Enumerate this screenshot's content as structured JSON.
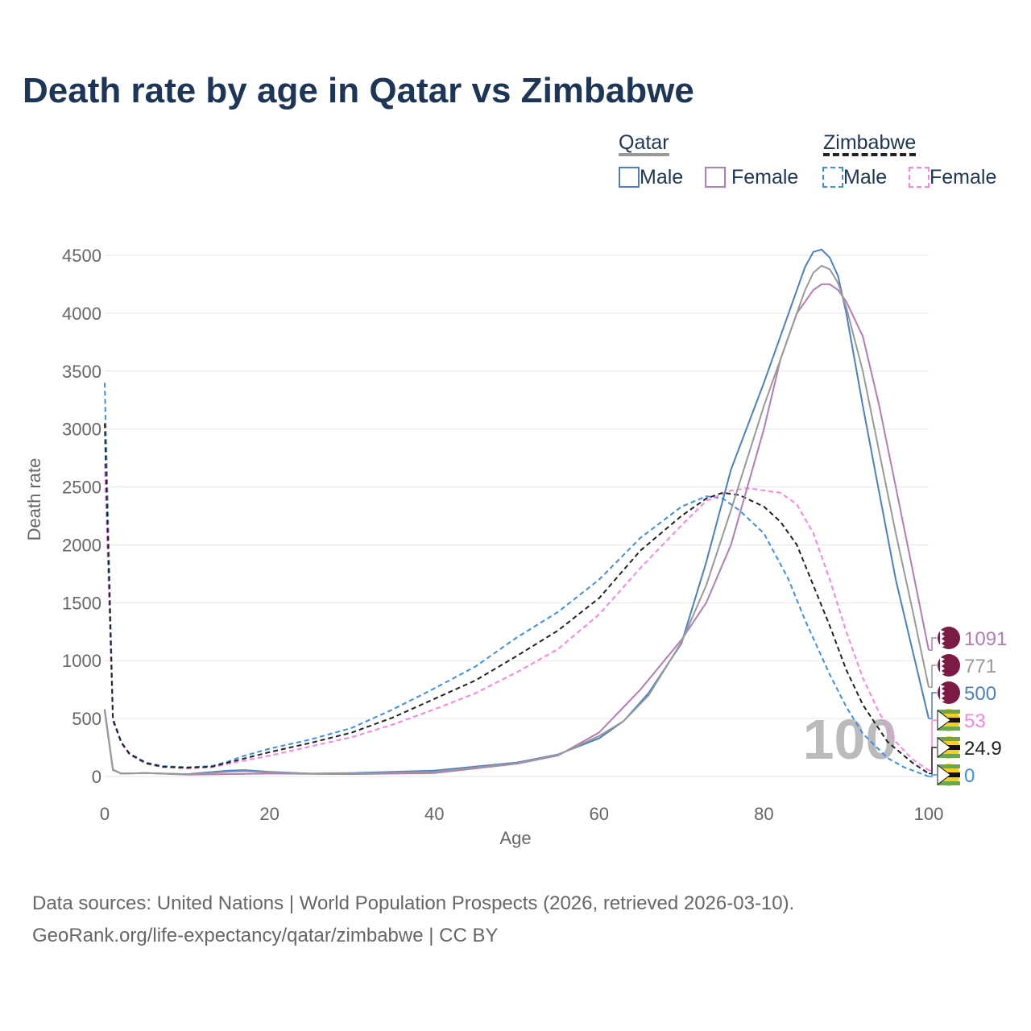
{
  "title": "Death rate by age in Qatar vs Zimbabwe",
  "legend": {
    "group1": "Qatar",
    "group2": "Zimbabwe",
    "male": "Male",
    "female": "Female"
  },
  "footer": {
    "line1": "Data sources: United Nations | World Population Prospects (2026, retrieved 2026-03-10).",
    "line2": "GeoRank.org/life-expectancy/qatar/zimbabwe | CC BY"
  },
  "watermark": "100",
  "chart_data": {
    "type": "line",
    "xlabel": "Age",
    "ylabel": "Death rate",
    "xlim": [
      0,
      100
    ],
    "ylim": [
      0,
      4500
    ],
    "xticks": [
      0,
      20,
      40,
      60,
      80,
      100
    ],
    "yticks": [
      0,
      500,
      1000,
      1500,
      2000,
      2500,
      3000,
      3500,
      4000,
      4500
    ],
    "series": [
      {
        "name": "Zimbabwe Male",
        "color": "#3b8ef0",
        "dashed": true,
        "end_label": "0",
        "x": [
          0,
          1,
          2,
          3,
          5,
          7,
          10,
          13,
          15,
          17,
          20,
          25,
          30,
          35,
          40,
          45,
          50,
          55,
          60,
          65,
          70,
          73,
          75,
          77,
          80,
          83,
          85,
          88,
          90,
          92,
          95,
          97,
          100
        ],
        "y": [
          3400,
          500,
          300,
          200,
          120,
          90,
          80,
          90,
          130,
          180,
          240,
          320,
          420,
          580,
          760,
          950,
          1200,
          1420,
          1700,
          2060,
          2330,
          2420,
          2400,
          2300,
          2100,
          1700,
          1350,
          880,
          600,
          370,
          160,
          80,
          0
        ]
      },
      {
        "name": "Zimbabwe Female",
        "color": "#ff80e8",
        "dashed": true,
        "end_label": "53",
        "x": [
          0,
          1,
          2,
          3,
          5,
          7,
          10,
          13,
          15,
          20,
          25,
          30,
          35,
          40,
          45,
          50,
          55,
          60,
          65,
          70,
          73,
          76,
          78,
          80,
          82,
          84,
          86,
          88,
          90,
          92,
          94,
          96,
          98,
          100
        ],
        "y": [
          2700,
          480,
          290,
          190,
          110,
          80,
          70,
          80,
          110,
          180,
          260,
          340,
          450,
          580,
          720,
          900,
          1100,
          1400,
          1800,
          2170,
          2380,
          2470,
          2490,
          2470,
          2450,
          2350,
          2100,
          1700,
          1250,
          850,
          550,
          300,
          150,
          53
        ]
      },
      {
        "name": "Zimbabwe",
        "color": "#222222",
        "dashed": true,
        "end_label": "24.9",
        "x": [
          0,
          1,
          2,
          3,
          5,
          7,
          10,
          13,
          15,
          20,
          25,
          30,
          35,
          40,
          45,
          50,
          55,
          60,
          65,
          70,
          73,
          75,
          77,
          80,
          82,
          84,
          86,
          88,
          90,
          92,
          95,
          98,
          100
        ],
        "y": [
          3050,
          490,
          295,
          195,
          115,
          85,
          75,
          85,
          120,
          210,
          290,
          380,
          510,
          670,
          830,
          1040,
          1260,
          1540,
          1950,
          2250,
          2400,
          2450,
          2430,
          2330,
          2200,
          2000,
          1650,
          1300,
          920,
          620,
          300,
          120,
          24.9
        ]
      },
      {
        "name": "Qatar Male",
        "color": "#4a7fc8",
        "dashed": false,
        "end_label": "500",
        "x": [
          0,
          1,
          2,
          5,
          10,
          15,
          17,
          20,
          25,
          30,
          40,
          50,
          55,
          60,
          63,
          66,
          70,
          73,
          76,
          80,
          83,
          85,
          86,
          87,
          88,
          89,
          90,
          92,
          94,
          96,
          98,
          100
        ],
        "y": [
          580,
          60,
          25,
          30,
          20,
          50,
          55,
          40,
          25,
          30,
          50,
          120,
          190,
          330,
          480,
          720,
          1150,
          1850,
          2650,
          3400,
          4000,
          4400,
          4530,
          4550,
          4480,
          4320,
          4000,
          3200,
          2450,
          1700,
          1100,
          500
        ]
      },
      {
        "name": "Qatar Female",
        "color": "#b57bb8",
        "dashed": false,
        "end_label": "1091",
        "x": [
          0,
          1,
          2,
          5,
          10,
          20,
          30,
          40,
          50,
          55,
          60,
          65,
          70,
          73,
          76,
          78,
          80,
          82,
          84,
          86,
          87,
          88,
          89,
          90,
          92,
          94,
          96,
          98,
          100
        ],
        "y": [
          560,
          55,
          25,
          30,
          15,
          25,
          20,
          30,
          110,
          180,
          380,
          750,
          1180,
          1500,
          2000,
          2500,
          3000,
          3600,
          4000,
          4200,
          4250,
          4250,
          4200,
          4100,
          3800,
          3200,
          2500,
          1800,
          1091
        ]
      },
      {
        "name": "Qatar",
        "color": "#999999",
        "dashed": false,
        "end_label": "771",
        "x": [
          0,
          1,
          2,
          5,
          10,
          15,
          17,
          20,
          25,
          30,
          40,
          50,
          55,
          60,
          63,
          66,
          70,
          73,
          76,
          80,
          83,
          85,
          86,
          87,
          88,
          89,
          90,
          92,
          94,
          96,
          98,
          100
        ],
        "y": [
          570,
          58,
          25,
          30,
          18,
          40,
          45,
          35,
          25,
          25,
          40,
          115,
          185,
          350,
          480,
          700,
          1160,
          1650,
          2300,
          3200,
          3800,
          4200,
          4350,
          4410,
          4380,
          4260,
          4050,
          3500,
          2800,
          2100,
          1450,
          771
        ]
      }
    ]
  }
}
